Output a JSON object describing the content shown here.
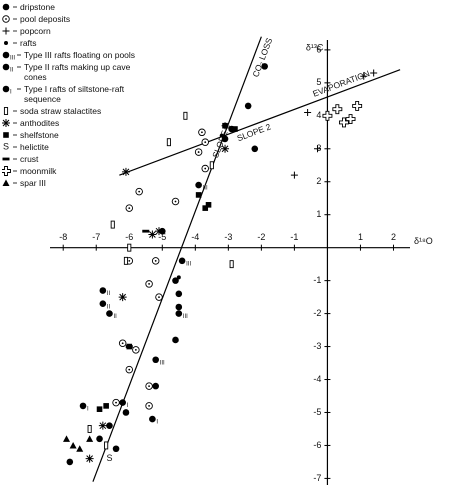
{
  "chart_data": {
    "type": "scatter",
    "x_label": "δ¹⁸O",
    "y_label": "δ¹³C",
    "xlim": [
      -8.4,
      2.5
    ],
    "ylim": [
      -7.2,
      6.3
    ],
    "xticks": [
      -8,
      -7,
      -6,
      -5,
      -4,
      -3,
      -2,
      -1,
      1,
      2
    ],
    "yticks": [
      -7,
      -6,
      -5,
      -4,
      -3,
      -2,
      -1,
      1,
      2,
      3,
      4,
      5,
      6
    ],
    "series": [
      {
        "name": "dripstone",
        "marker": "dot",
        "color": "#000",
        "x": [
          -1.9,
          -2.4,
          -2.9,
          -3.1,
          -2.2,
          -3.7,
          -5.0,
          -4.6,
          -4.5,
          -4.5,
          -4.6,
          -5.2,
          -6.1,
          -6.4,
          -7.8,
          -6.9,
          -6.6
        ],
        "y": [
          5.5,
          4.3,
          3.6,
          3.3,
          3.0,
          2.4,
          0.5,
          -1.0,
          -1.4,
          -1.8,
          -2.8,
          -4.2,
          -5.0,
          -6.1,
          -6.5,
          -5.8,
          -5.4
        ]
      },
      {
        "name": "pool deposits",
        "marker": "circle-dot",
        "color": "#000",
        "x": [
          -3.8,
          -3.7,
          -3.9,
          -3.7,
          -4.6,
          -5.7,
          -6.0,
          -6.0,
          -5.2,
          -5.4,
          -5.1,
          -6.2,
          -5.8,
          -5.4,
          -5.4,
          -6.0,
          -6.4
        ],
        "y": [
          3.5,
          3.2,
          2.9,
          2.4,
          1.4,
          1.7,
          1.2,
          -0.4,
          -0.4,
          -1.1,
          -1.5,
          -2.9,
          -3.1,
          -4.2,
          -4.8,
          -3.7,
          -4.7
        ]
      },
      {
        "name": "popcorn",
        "marker": "plus",
        "color": "#000",
        "x": [
          1.1,
          1.4,
          -0.6,
          -0.3,
          -1.0,
          -3.1
        ],
        "y": [
          5.2,
          5.3,
          4.1,
          3.0,
          2.2,
          3.7
        ]
      },
      {
        "name": "rafts",
        "marker": "small-dot",
        "color": "#000",
        "x": [
          -4.5,
          -3.2
        ],
        "y": [
          -0.9,
          3.4
        ]
      },
      {
        "name": "Type III rafts floating on pools",
        "marker": "dot",
        "marker_label": "III",
        "color": "#000",
        "x": [
          -4.4,
          -4.5,
          -3.9,
          -5.2
        ],
        "y": [
          -0.4,
          -2.0,
          1.9,
          -3.4
        ]
      },
      {
        "name": "Type II rafts making up cave cones",
        "marker": "dot",
        "marker_label": "II",
        "color": "#000",
        "x": [
          -6.8,
          -6.8,
          -6.6
        ],
        "y": [
          -1.3,
          -1.7,
          -2.0
        ]
      },
      {
        "name": "Type I rafts of siltstone-raft sequence",
        "marker": "dot",
        "marker_label": "I",
        "color": "#000",
        "x": [
          -7.4,
          -6.2,
          -5.3
        ],
        "y": [
          -4.8,
          -4.7,
          -5.2
        ]
      },
      {
        "name": "soda straw stalactites",
        "marker": "open-rect",
        "color": "#000",
        "x": [
          -4.3,
          -4.8,
          -3.5,
          -6.5,
          -6.0,
          -6.1,
          -2.9,
          -6.7,
          -7.2
        ],
        "y": [
          4.0,
          3.2,
          2.5,
          0.7,
          0.0,
          -0.4,
          -0.5,
          -6.0,
          -5.5
        ]
      },
      {
        "name": "anthodites",
        "marker": "asterisk",
        "color": "#000",
        "x": [
          -6.1,
          -5.1,
          -5.3,
          -6.2,
          -6.8,
          -7.2,
          -3.1
        ],
        "y": [
          2.3,
          0.5,
          0.4,
          -1.5,
          -5.4,
          -6.4,
          3.0
        ]
      },
      {
        "name": "shelfstone",
        "marker": "square",
        "color": "#000",
        "x": [
          -3.1,
          -2.8,
          -3.6,
          -3.7,
          -3.9,
          -6.0,
          -6.7,
          -6.9
        ],
        "y": [
          3.7,
          3.6,
          1.3,
          1.2,
          1.6,
          -3.0,
          -4.8,
          -4.9
        ]
      },
      {
        "name": "helictite",
        "marker": "letter",
        "marker_label": "S",
        "color": "#000",
        "x": [
          -6.6
        ],
        "y": [
          -6.4
        ]
      },
      {
        "name": "crust",
        "marker": "dash",
        "color": "#000",
        "x": [
          -5.5,
          -6.0
        ],
        "y": [
          0.5,
          -3.0
        ]
      },
      {
        "name": "moonmilk",
        "marker": "open-cross",
        "color": "#000",
        "x": [
          0.3,
          0.7,
          0.9,
          0.5,
          0.0
        ],
        "y": [
          4.2,
          3.9,
          4.3,
          3.8,
          4.0
        ]
      },
      {
        "name": "spar III",
        "marker": "triangle",
        "color": "#000",
        "x": [
          -7.9,
          -7.7,
          -7.5,
          -7.2
        ],
        "y": [
          -5.8,
          -6.0,
          -6.1,
          -5.8
        ]
      }
    ],
    "trend_lines": [
      {
        "label": "SLOPE 1",
        "note": "CO₂ LOSS",
        "x": [
          -7.1,
          -2.0
        ],
        "y": [
          -7.1,
          6.4
        ]
      },
      {
        "label": "SLOPE 2",
        "note": "EVAPORATION",
        "x": [
          -6.3,
          2.2
        ],
        "y": [
          2.2,
          5.4
        ]
      }
    ]
  }
}
